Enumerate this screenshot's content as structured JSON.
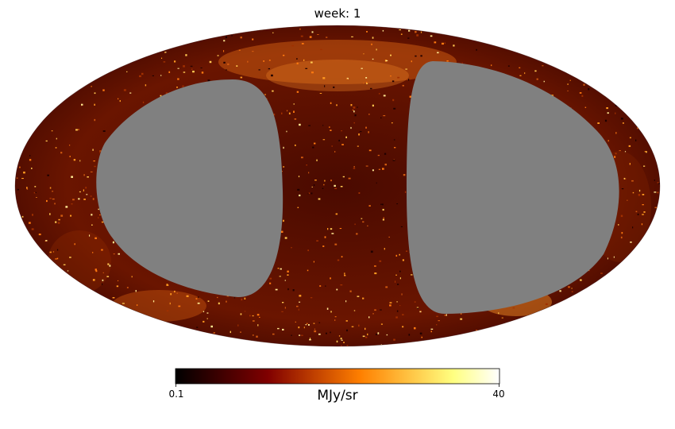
{
  "chart_data": {
    "type": "heatmap",
    "projection": "mollweide",
    "title": "week: 1",
    "colormap": "afmhot",
    "masked_color": "#808080",
    "colorbar": {
      "orientation": "horizontal",
      "min_label": "0.1",
      "max_label": "40",
      "vmin": 0.1,
      "vmax": 40,
      "unit": "MJy/sr",
      "colors": [
        "#000000",
        "#400000",
        "#800000",
        "#c04000",
        "#ff8000",
        "#ffc040",
        "#ffff80",
        "#ffffff"
      ]
    },
    "masked_regions": [
      "left lobe",
      "right lobe"
    ],
    "bright_features": [
      "band along top arc",
      "lower-left arc",
      "lower-right arc"
    ]
  }
}
